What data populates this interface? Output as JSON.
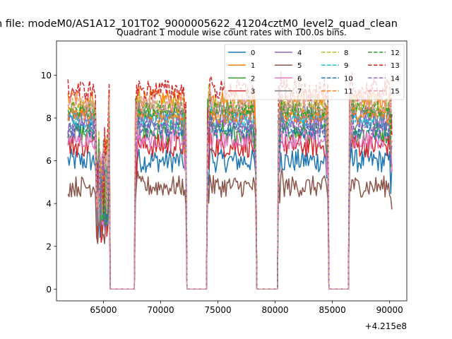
{
  "chart_data": {
    "type": "line",
    "suptitle": "n file: modeM0/AS1A12_101T02_9000005622_41204cztM0_level2_quad_clean",
    "title": "Quadrant 1 module wise count rates with 100.0s bins.",
    "xlabel": "",
    "ylabel": "",
    "x_offset_label": "+4.215e8",
    "xlim": [
      60900,
      91500
    ],
    "ylim": [
      -0.55,
      11.6
    ],
    "xticks": [
      65000,
      70000,
      75000,
      80000,
      85000,
      90000
    ],
    "xtick_labels": [
      "65000",
      "70000",
      "75000",
      "80000",
      "85000",
      "90000"
    ],
    "yticks": [
      0,
      2,
      4,
      6,
      8,
      10
    ],
    "ytick_labels": [
      "0",
      "2",
      "4",
      "6",
      "8",
      "10"
    ],
    "legend": {
      "location": "upper-right",
      "columns": 4
    },
    "series": [
      {
        "name": "0",
        "color": "#1f77b4",
        "dash": "solid",
        "base": 6.0,
        "amp": 0.55
      },
      {
        "name": "1",
        "color": "#ff7f0e",
        "dash": "solid",
        "base": 8.9,
        "amp": 0.45
      },
      {
        "name": "2",
        "color": "#2ca02c",
        "dash": "solid",
        "base": 7.3,
        "amp": 0.55
      },
      {
        "name": "3",
        "color": "#d62728",
        "dash": "solid",
        "base": 6.7,
        "amp": 0.55
      },
      {
        "name": "4",
        "color": "#9467bd",
        "dash": "solid",
        "base": 8.0,
        "amp": 0.45
      },
      {
        "name": "5",
        "color": "#8c564b",
        "dash": "solid",
        "base": 4.8,
        "amp": 0.5
      },
      {
        "name": "6",
        "color": "#e377c2",
        "dash": "solid",
        "base": 7.0,
        "amp": 0.45
      },
      {
        "name": "7",
        "color": "#7f7f7f",
        "dash": "solid",
        "base": 8.3,
        "amp": 0.45
      },
      {
        "name": "8",
        "color": "#bcbd22",
        "dash": "dashed",
        "base": 8.6,
        "amp": 0.4
      },
      {
        "name": "9",
        "color": "#17becf",
        "dash": "dashed",
        "base": 7.9,
        "amp": 0.4
      },
      {
        "name": "10",
        "color": "#1f77b4",
        "dash": "dashed",
        "base": 7.4,
        "amp": 0.4
      },
      {
        "name": "11",
        "color": "#ff7f0e",
        "dash": "dashed",
        "base": 8.1,
        "amp": 0.4
      },
      {
        "name": "12",
        "color": "#2ca02c",
        "dash": "dashed",
        "base": 8.4,
        "amp": 0.4
      },
      {
        "name": "13",
        "color": "#d62728",
        "dash": "dashed",
        "base": 9.3,
        "amp": 0.5
      },
      {
        "name": "14",
        "color": "#9467bd",
        "dash": "dashed",
        "base": 7.6,
        "amp": 0.4
      },
      {
        "name": "15",
        "color": "#e7969c",
        "dash": "dashed",
        "base": 8.7,
        "amp": 0.45
      }
    ],
    "segments": [
      {
        "start": 61900,
        "end": 65500
      },
      {
        "start": 67800,
        "end": 72200
      },
      {
        "start": 74100,
        "end": 78300
      },
      {
        "start": 80300,
        "end": 84600
      },
      {
        "start": 86500,
        "end": 90200
      }
    ],
    "bin_size_s": 100.0
  }
}
